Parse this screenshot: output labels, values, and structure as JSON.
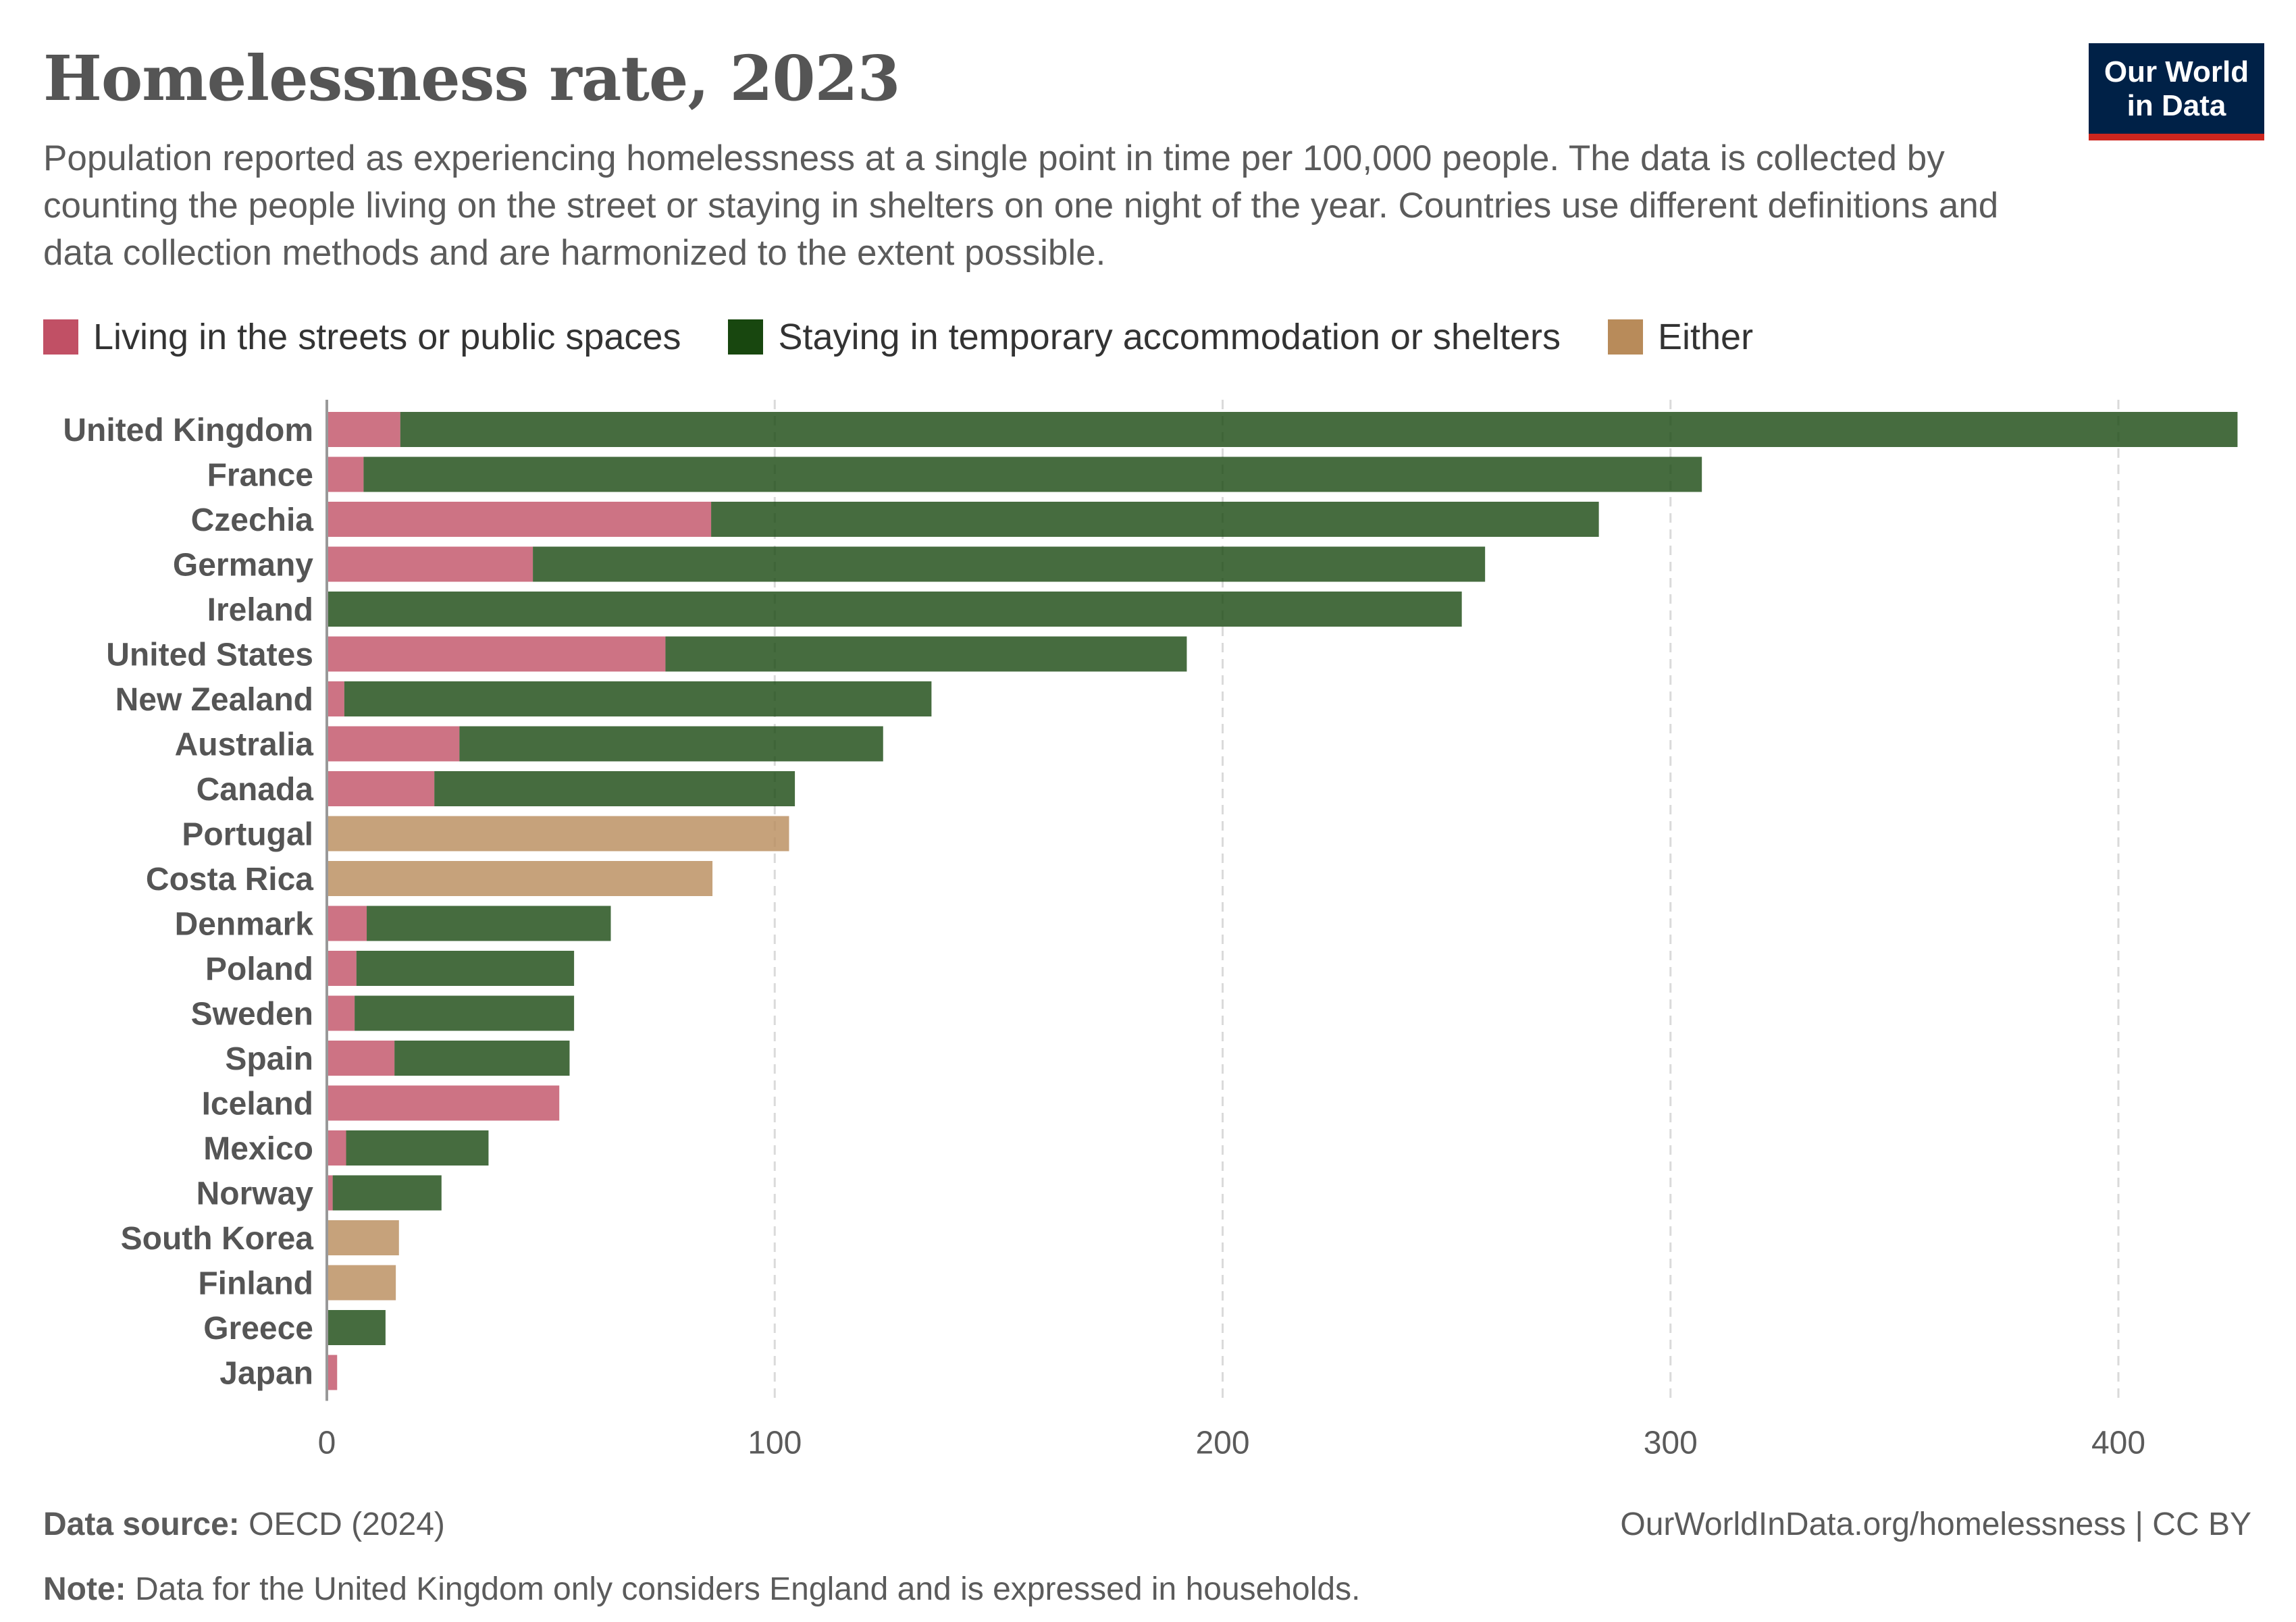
{
  "header": {
    "title": "Homelessness rate, 2023",
    "subtitle": "Population reported as experiencing homelessness at a single point in time per 100,000 people. The data is collected by counting the people living on the street or staying in shelters on one night of the year. Countries use different definitions and data collection methods and are harmonized to the extent possible.",
    "logo": "Our World in Data"
  },
  "footer": {
    "source_label": "Data source:",
    "source": "OECD (2024)",
    "url": "OurWorldInData.org/homelessness | CC BY",
    "note_label": "Note:",
    "note": "Data for the United Kingdom only considers England and is expressed in households."
  },
  "chart_data": {
    "type": "bar",
    "orientation": "horizontal",
    "stacked": true,
    "xlim": [
      0,
      430
    ],
    "xticks": [
      0,
      100,
      200,
      300,
      400
    ],
    "grid": "vertical dashed",
    "legend_position": "top",
    "categories": [
      "United Kingdom",
      "France",
      "Czechia",
      "Germany",
      "Ireland",
      "United States",
      "New Zealand",
      "Australia",
      "Canada",
      "Portugal",
      "Costa Rica",
      "Denmark",
      "Poland",
      "Sweden",
      "Spain",
      "Iceland",
      "Mexico",
      "Norway",
      "South Korea",
      "Finland",
      "Greece",
      "Japan"
    ],
    "series": [
      {
        "name": "Living in the streets or public spaces",
        "color": "#c15065",
        "values": [
          16.4,
          8.2,
          85.8,
          46,
          0,
          75.6,
          3.9,
          29.6,
          24,
          0,
          0,
          8.9,
          6.6,
          6.2,
          15.1,
          51.9,
          4.3,
          1.3,
          0,
          0,
          0,
          2.3
        ]
      },
      {
        "name": "Staying in temporary accommodation or shelters",
        "color": "#18470f",
        "values": [
          410.2,
          298.8,
          198.2,
          212.6,
          253.4,
          116.4,
          131.1,
          94.6,
          80.5,
          0,
          0,
          54.5,
          48.6,
          49,
          39.1,
          0,
          31.8,
          24.3,
          0,
          0,
          13.1,
          0
        ]
      },
      {
        "name": "Either",
        "color": "#b88b5a",
        "values": [
          0,
          0,
          0,
          0,
          0,
          0,
          0,
          0,
          0,
          103.2,
          86.1,
          0,
          0,
          0,
          0,
          0,
          0,
          0,
          16.1,
          15.4,
          0,
          0
        ]
      }
    ]
  }
}
